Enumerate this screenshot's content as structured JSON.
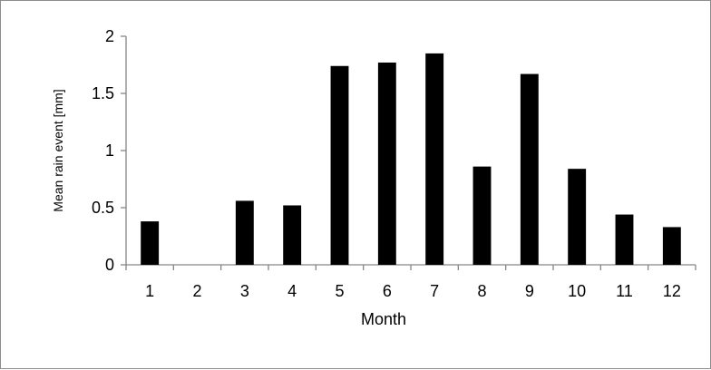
{
  "chart_data": {
    "type": "bar",
    "title": "",
    "xlabel": "Month",
    "ylabel": "Mean rain event  [mm]",
    "categories": [
      "1",
      "2",
      "3",
      "4",
      "5",
      "6",
      "7",
      "8",
      "9",
      "10",
      "11",
      "12"
    ],
    "values": [
      0.38,
      0,
      0.56,
      0.52,
      1.74,
      1.77,
      1.85,
      0.86,
      1.67,
      0.84,
      0.44,
      0.33
    ],
    "ylim": [
      0,
      2
    ],
    "yticks": [
      "0",
      "0.5",
      "1",
      "1.5",
      "2"
    ],
    "grid": false,
    "legend": "none",
    "bar_color": "#000000",
    "axis_color": "#868686"
  }
}
